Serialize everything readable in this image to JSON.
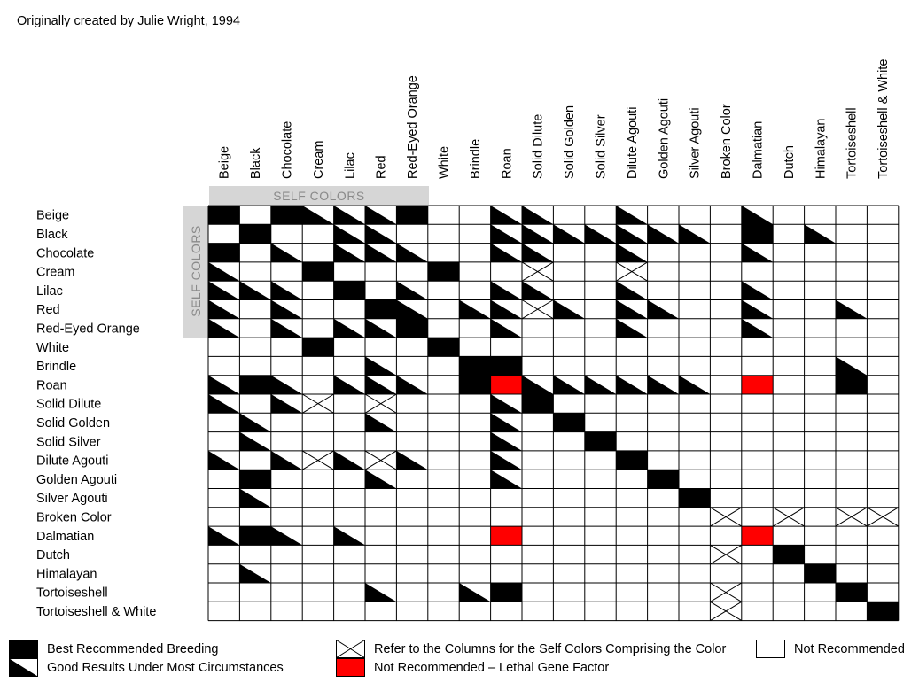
{
  "credit": "Originally created by Julie Wright, 1994",
  "self_colors_label": "SELF COLORS",
  "colors": [
    "Beige",
    "Black",
    "Chocolate",
    "Cream",
    "Lilac",
    "Red",
    "Red-Eyed Orange",
    "White",
    "Brindle",
    "Roan",
    "Solid Dilute",
    "Solid Golden",
    "Solid Silver",
    "Dilute Agouti",
    "Golden Agouti",
    "Silver Agouti",
    "Broken Color",
    "Dalmatian",
    "Dutch",
    "Himalayan",
    "Tortoiseshell",
    "Tortoiseshell & White"
  ],
  "legend": {
    "best": "Best Recommended Breeding",
    "good": "Good Results Under Most Circumstances",
    "refer": "Refer to the Columns for the Self Colors Comprising the Color",
    "lethal": "Not Recommended – Lethal Gene Factor",
    "none": "Not Recommended"
  },
  "colors_fill": {
    "best": "#000000",
    "lethal": "#ff0000",
    "none": "#ffffff",
    "self_band": "#d6d6d6"
  },
  "chart_data": {
    "type": "table",
    "legend_codes": {
      "B": "Best Recommended Breeding",
      "G": "Good Results Under Most Circumstances",
      "X": "Refer to the Columns for the Self Colors Comprising the Color",
      "L": "Not Recommended – Lethal Gene Factor",
      "": "Not Recommended"
    },
    "rows": [
      "Beige",
      "Black",
      "Chocolate",
      "Cream",
      "Lilac",
      "Red",
      "Red-Eyed Orange",
      "White",
      "Brindle",
      "Roan",
      "Solid Dilute",
      "Solid Golden",
      "Solid Silver",
      "Dilute Agouti",
      "Golden Agouti",
      "Silver Agouti",
      "Broken Color",
      "Dalmatian",
      "Dutch",
      "Himalayan",
      "Tortoiseshell",
      "Tortoiseshell & White"
    ],
    "columns": [
      "Beige",
      "Black",
      "Chocolate",
      "Cream",
      "Lilac",
      "Red",
      "Red-Eyed Orange",
      "White",
      "Brindle",
      "Roan",
      "Solid Dilute",
      "Solid Golden",
      "Solid Silver",
      "Dilute Agouti",
      "Golden Agouti",
      "Silver Agouti",
      "Broken Color",
      "Dalmatian",
      "Dutch",
      "Himalayan",
      "Tortoiseshell",
      "Tortoiseshell & White"
    ],
    "cells": [
      [
        "B",
        "",
        "B",
        "G",
        "G",
        "G",
        "B",
        "",
        "",
        "G",
        "G",
        "",
        "",
        "G",
        "",
        "",
        "",
        "G",
        "",
        "",
        "",
        ""
      ],
      [
        "",
        "B",
        "",
        "",
        "G",
        "G",
        "",
        "",
        "",
        "G",
        "G",
        "G",
        "G",
        "G",
        "G",
        "G",
        "",
        "B",
        "",
        "G",
        "",
        ""
      ],
      [
        "B",
        "",
        "G",
        "",
        "G",
        "G",
        "G",
        "",
        "",
        "G",
        "G",
        "",
        "",
        "G",
        "",
        "",
        "",
        "G",
        "",
        "",
        "",
        ""
      ],
      [
        "G",
        "",
        "",
        "B",
        "",
        "",
        "",
        "B",
        "",
        "",
        "X",
        "",
        "",
        "X",
        "",
        "",
        "",
        "",
        "",
        "",
        "",
        ""
      ],
      [
        "G",
        "G",
        "G",
        "",
        "B",
        "",
        "G",
        "",
        "",
        "G",
        "G",
        "",
        "",
        "G",
        "",
        "",
        "",
        "G",
        "",
        "",
        "",
        ""
      ],
      [
        "G",
        "",
        "G",
        "",
        "",
        "B",
        "G",
        "",
        "G",
        "G",
        "X",
        "G",
        "",
        "G",
        "G",
        "",
        "",
        "G",
        "",
        "",
        "G",
        ""
      ],
      [
        "G",
        "",
        "G",
        "",
        "G",
        "G",
        "B",
        "",
        "",
        "G",
        "",
        "",
        "",
        "G",
        "",
        "",
        "",
        "G",
        "",
        "",
        "",
        ""
      ],
      [
        "",
        "",
        "",
        "B",
        "",
        "",
        "",
        "B",
        "",
        "",
        "",
        "",
        "",
        "",
        "",
        "",
        "",
        "",
        "",
        "",
        "",
        ""
      ],
      [
        "",
        "",
        "",
        "",
        "",
        "G",
        "",
        "",
        "B",
        "B",
        "",
        "",
        "",
        "",
        "",
        "",
        "",
        "",
        "",
        "",
        "G",
        ""
      ],
      [
        "G",
        "B",
        "G",
        "",
        "G",
        "G",
        "G",
        "",
        "B",
        "L",
        "G",
        "G",
        "G",
        "G",
        "G",
        "G",
        "",
        "L",
        "",
        "",
        "B",
        ""
      ],
      [
        "G",
        "",
        "G",
        "X",
        "",
        "X",
        "",
        "",
        "",
        "G",
        "B",
        "",
        "",
        "",
        "",
        "",
        "",
        "",
        "",
        "",
        "",
        ""
      ],
      [
        "",
        "G",
        "",
        "",
        "",
        "G",
        "",
        "",
        "",
        "G",
        "",
        "B",
        "",
        "",
        "",
        "",
        "",
        "",
        "",
        "",
        "",
        ""
      ],
      [
        "",
        "G",
        "",
        "",
        "",
        "",
        "",
        "",
        "",
        "G",
        "",
        "",
        "B",
        "",
        "",
        "",
        "",
        "",
        "",
        "",
        "",
        ""
      ],
      [
        "G",
        "",
        "G",
        "X",
        "G",
        "X",
        "G",
        "",
        "",
        "G",
        "",
        "",
        "",
        "B",
        "",
        "",
        "",
        "",
        "",
        "",
        "",
        ""
      ],
      [
        "",
        "B",
        "",
        "",
        "",
        "G",
        "",
        "",
        "",
        "G",
        "",
        "",
        "",
        "",
        "B",
        "",
        "",
        "",
        "",
        "",
        "",
        ""
      ],
      [
        "",
        "G",
        "",
        "",
        "",
        "",
        "",
        "",
        "",
        "",
        "",
        "",
        "",
        "",
        "",
        "B",
        "",
        "",
        "",
        "",
        "",
        ""
      ],
      [
        "",
        "",
        "",
        "",
        "",
        "",
        "",
        "",
        "",
        "",
        "",
        "",
        "",
        "",
        "",
        "",
        "X",
        "",
        "X",
        "",
        "X",
        "X"
      ],
      [
        "G",
        "B",
        "G",
        "",
        "G",
        "",
        "",
        "",
        "",
        "L",
        "",
        "",
        "",
        "",
        "",
        "",
        "",
        "L",
        "",
        "",
        "",
        ""
      ],
      [
        "",
        "",
        "",
        "",
        "",
        "",
        "",
        "",
        "",
        "",
        "",
        "",
        "",
        "",
        "",
        "",
        "X",
        "",
        "B",
        "",
        "",
        ""
      ],
      [
        "",
        "G",
        "",
        "",
        "",
        "",
        "",
        "",
        "",
        "",
        "",
        "",
        "",
        "",
        "",
        "",
        "",
        "",
        "",
        "B",
        "",
        ""
      ],
      [
        "",
        "",
        "",
        "",
        "",
        "G",
        "",
        "",
        "G",
        "B",
        "",
        "",
        "",
        "",
        "",
        "",
        "X",
        "",
        "",
        "",
        "B",
        ""
      ],
      [
        "",
        "",
        "",
        "",
        "",
        "",
        "",
        "",
        "",
        "",
        "",
        "",
        "",
        "",
        "",
        "",
        "X",
        "",
        "",
        "",
        "",
        "B"
      ]
    ]
  }
}
